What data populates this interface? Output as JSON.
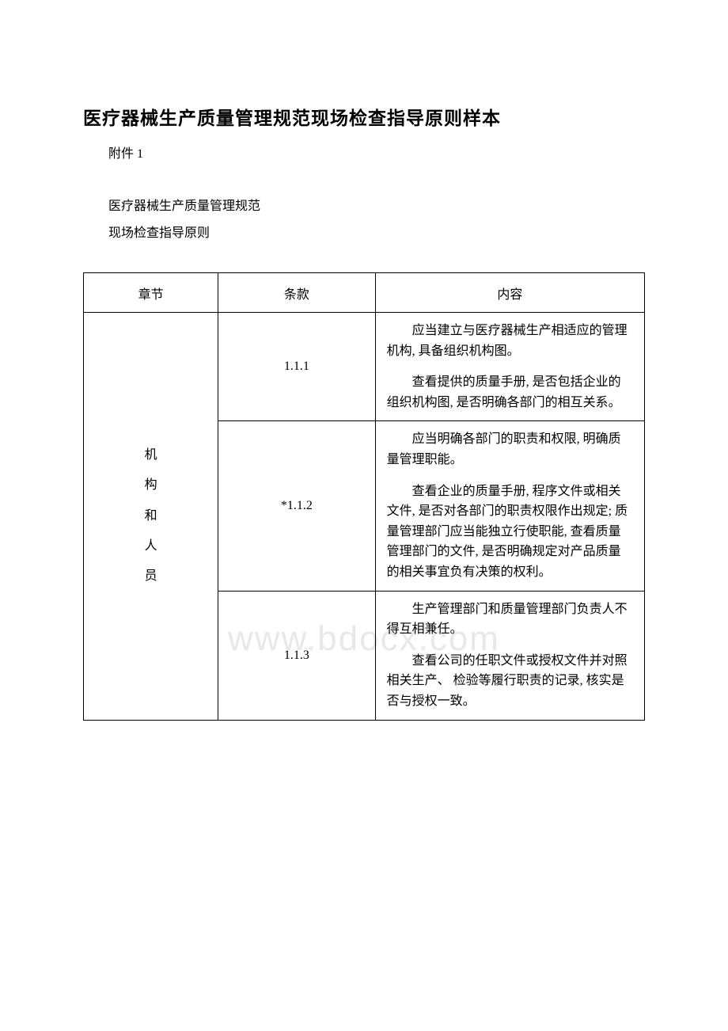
{
  "title": "医疗器械生产质量管理规范现场检查指导原则样本",
  "attachment_label": "附件 1",
  "subtitle_line1": "医疗器械生产质量管理规范",
  "subtitle_line2": "现场检查指导原则",
  "watermark_text": "www.bdocx.com",
  "table": {
    "headers": {
      "chapter": "章节",
      "clause": "条款",
      "content": "内容"
    },
    "chapter_chars": [
      "机",
      "构",
      "和",
      "人",
      "员"
    ],
    "rows": [
      {
        "clause": "1.1.1",
        "paragraphs": [
          "应当建立与医疗器械生产相适应的管理机构, 具备组织机构图。",
          "查看提供的质量手册, 是否包括企业的组织机构图, 是否明确各部门的相互关系。"
        ]
      },
      {
        "clause": "*1.1.2",
        "paragraphs": [
          "应当明确各部门的职责和权限, 明确质量管理职能。",
          "查看企业的质量手册, 程序文件或相关文件, 是否对各部门的职责权限作出规定; 质量管理部门应当能独立行使职能, 查看质量管理部门的文件, 是否明确规定对产品质量的相关事宜负有决策的权利。"
        ]
      },
      {
        "clause": "1.1.3",
        "paragraphs": [
          "生产管理部门和质量管理部门负责人不得互相兼任。",
          "查看公司的任职文件或授权文件并对照相关生产、 检验等履行职责的记录, 核实是否与授权一致。"
        ]
      }
    ]
  }
}
